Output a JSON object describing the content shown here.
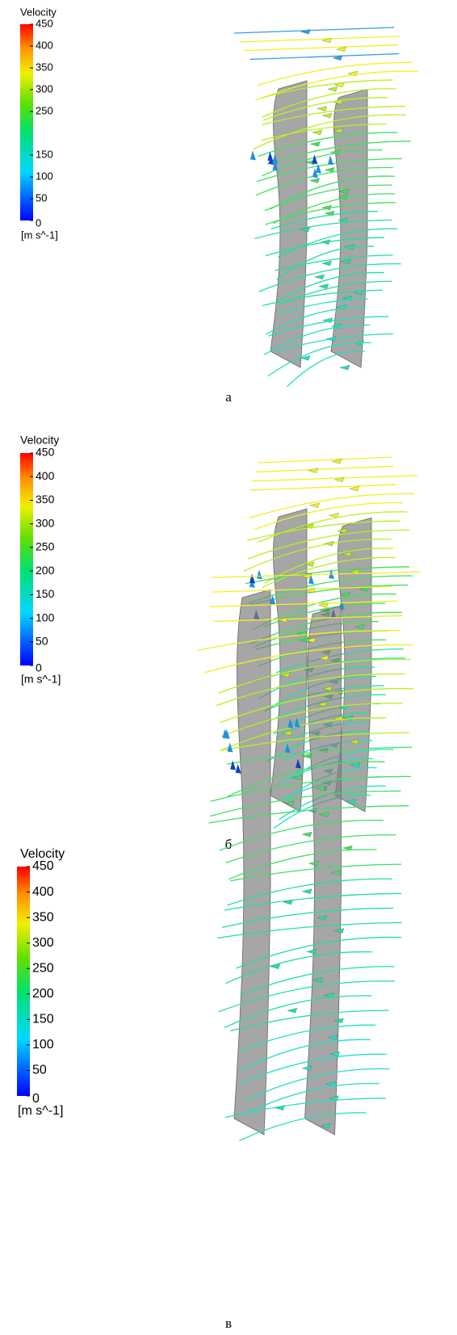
{
  "panels": [
    {
      "legend": {
        "title": "Velocity",
        "ticks": [
          450,
          400,
          350,
          300,
          250,
          150,
          100,
          50,
          0
        ],
        "unit": "[m s^-1]"
      },
      "caption": "а"
    },
    {
      "legend": {
        "title": "Velocity",
        "ticks": [
          450,
          400,
          350,
          300,
          250,
          200,
          150,
          100,
          50,
          0
        ],
        "unit": "[m s^-1]"
      },
      "caption": "б"
    },
    {
      "legend": {
        "title": "Velocity",
        "ticks": [
          450,
          400,
          350,
          300,
          250,
          200,
          150,
          100,
          50,
          0
        ],
        "unit": "[m s^-1]"
      },
      "caption": "в"
    }
  ]
}
